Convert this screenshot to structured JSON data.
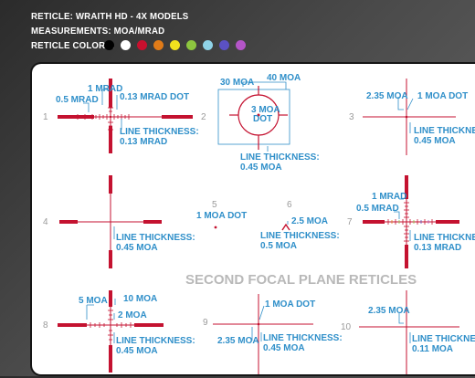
{
  "header": {
    "line1": "RETICLE: WRAITH HD - 4X MODELS",
    "line2": "MEASUREMENTS: MOA/MRAD",
    "line3": "RETICLE COLORS:"
  },
  "reticle_colors": [
    "#000000",
    "#ffffff",
    "#c8102e",
    "#e07b18",
    "#f2e21e",
    "#8dc63f",
    "#8fd3e8",
    "#5b51c3",
    "#b455c8"
  ],
  "colors": {
    "ink": "#c41230",
    "label": "#2f8fc9",
    "box": "#2f8fc9",
    "number": "#9a9a9a",
    "sfp_title": "#b9b9b9"
  },
  "section_title": "SECOND FOCAL PLANE RETICLES",
  "reticles": {
    "r1": {
      "number": "1",
      "labels": [
        "1 MRAD",
        "0.5 MRAD",
        "0.13 MRAD DOT",
        "LINE THICKNESS:",
        "0.13 MRAD"
      ]
    },
    "r2": {
      "number": "2",
      "labels": [
        "30 MOA",
        "40 MOA",
        "3 MOA",
        "DOT",
        "LINE THICKNESS:",
        "0.45 MOA"
      ]
    },
    "r3": {
      "number": "3",
      "labels": [
        "2.35 MOA",
        "1 MOA DOT",
        "LINE THICKNESS:",
        "0.45 MOA"
      ]
    },
    "r4": {
      "number": "4",
      "labels": [
        "LINE THICKNESS:",
        "0.45 MOA"
      ]
    },
    "r5": {
      "number": "5",
      "labels": [
        "1 MOA DOT"
      ]
    },
    "r6": {
      "number": "6",
      "labels": [
        "2.5 MOA",
        "LINE THICKNESS:",
        "0.5 MOA"
      ]
    },
    "r7": {
      "number": "7",
      "labels": [
        "1 MRAD",
        "0.5 MRAD",
        "LINE THICKNESS:",
        "0.13 MRAD"
      ]
    },
    "r8": {
      "number": "8",
      "labels": [
        "5 MOA",
        "10 MOA",
        "2 MOA",
        "LINE THICKNESS:",
        "0.45 MOA"
      ]
    },
    "r9": {
      "number": "9",
      "labels": [
        "1 MOA DOT",
        "2.35 MOA",
        "LINE THICKNESS:",
        "0.45 MOA"
      ]
    },
    "r10": {
      "number": "10",
      "labels": [
        "2.35 MOA",
        "LINE THICKNESS:",
        "0.11 MOA"
      ]
    }
  }
}
